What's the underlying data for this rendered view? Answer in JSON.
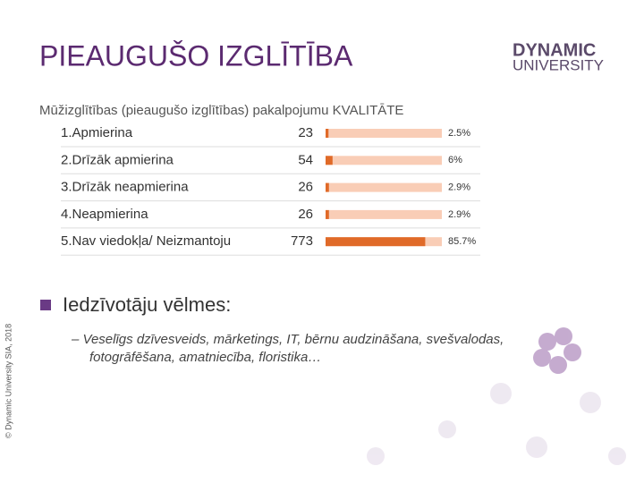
{
  "header": {
    "title": "PIEAUGUŠO IZGLĪTĪBA",
    "logo": [
      "DYNAMIC",
      "UNIVERSITY"
    ]
  },
  "table": {
    "title": "Mūžizglītības (pieaugušo izglītības) pakalpojumu KVALITĀTE",
    "rows": [
      {
        "label": "1.Apmierina",
        "count": 23,
        "share": {
          "value": 2.5,
          "label": "2.5%"
        }
      },
      {
        "label": "2.Drīzāk apmierina",
        "count": 54,
        "share": {
          "value": 6,
          "label": "6%"
        }
      },
      {
        "label": "3.Drīzāk neapmierina",
        "count": 26,
        "share": {
          "value": 2.9,
          "label": "2.9%"
        }
      },
      {
        "label": "4.Neapmierina",
        "count": 26,
        "share": {
          "value": 2.9,
          "label": "2.9%"
        }
      },
      {
        "label": "5.Nav viedokļa/ Neizmantoju",
        "count": 773,
        "share": {
          "value": 85.7,
          "label": "85.7%"
        }
      }
    ]
  },
  "bullets": {
    "heading": "Iedzīvotāju vēlmes:",
    "items": [
      "– Veselīgs dzīvesveids, mārketings, IT, bērnu audzināšana, svešvalodas,",
      "fotogrāfēšana, amatniecība, floristika…"
    ]
  },
  "footer": {
    "copyright": "© Dynamic University SIA, 2018"
  }
}
